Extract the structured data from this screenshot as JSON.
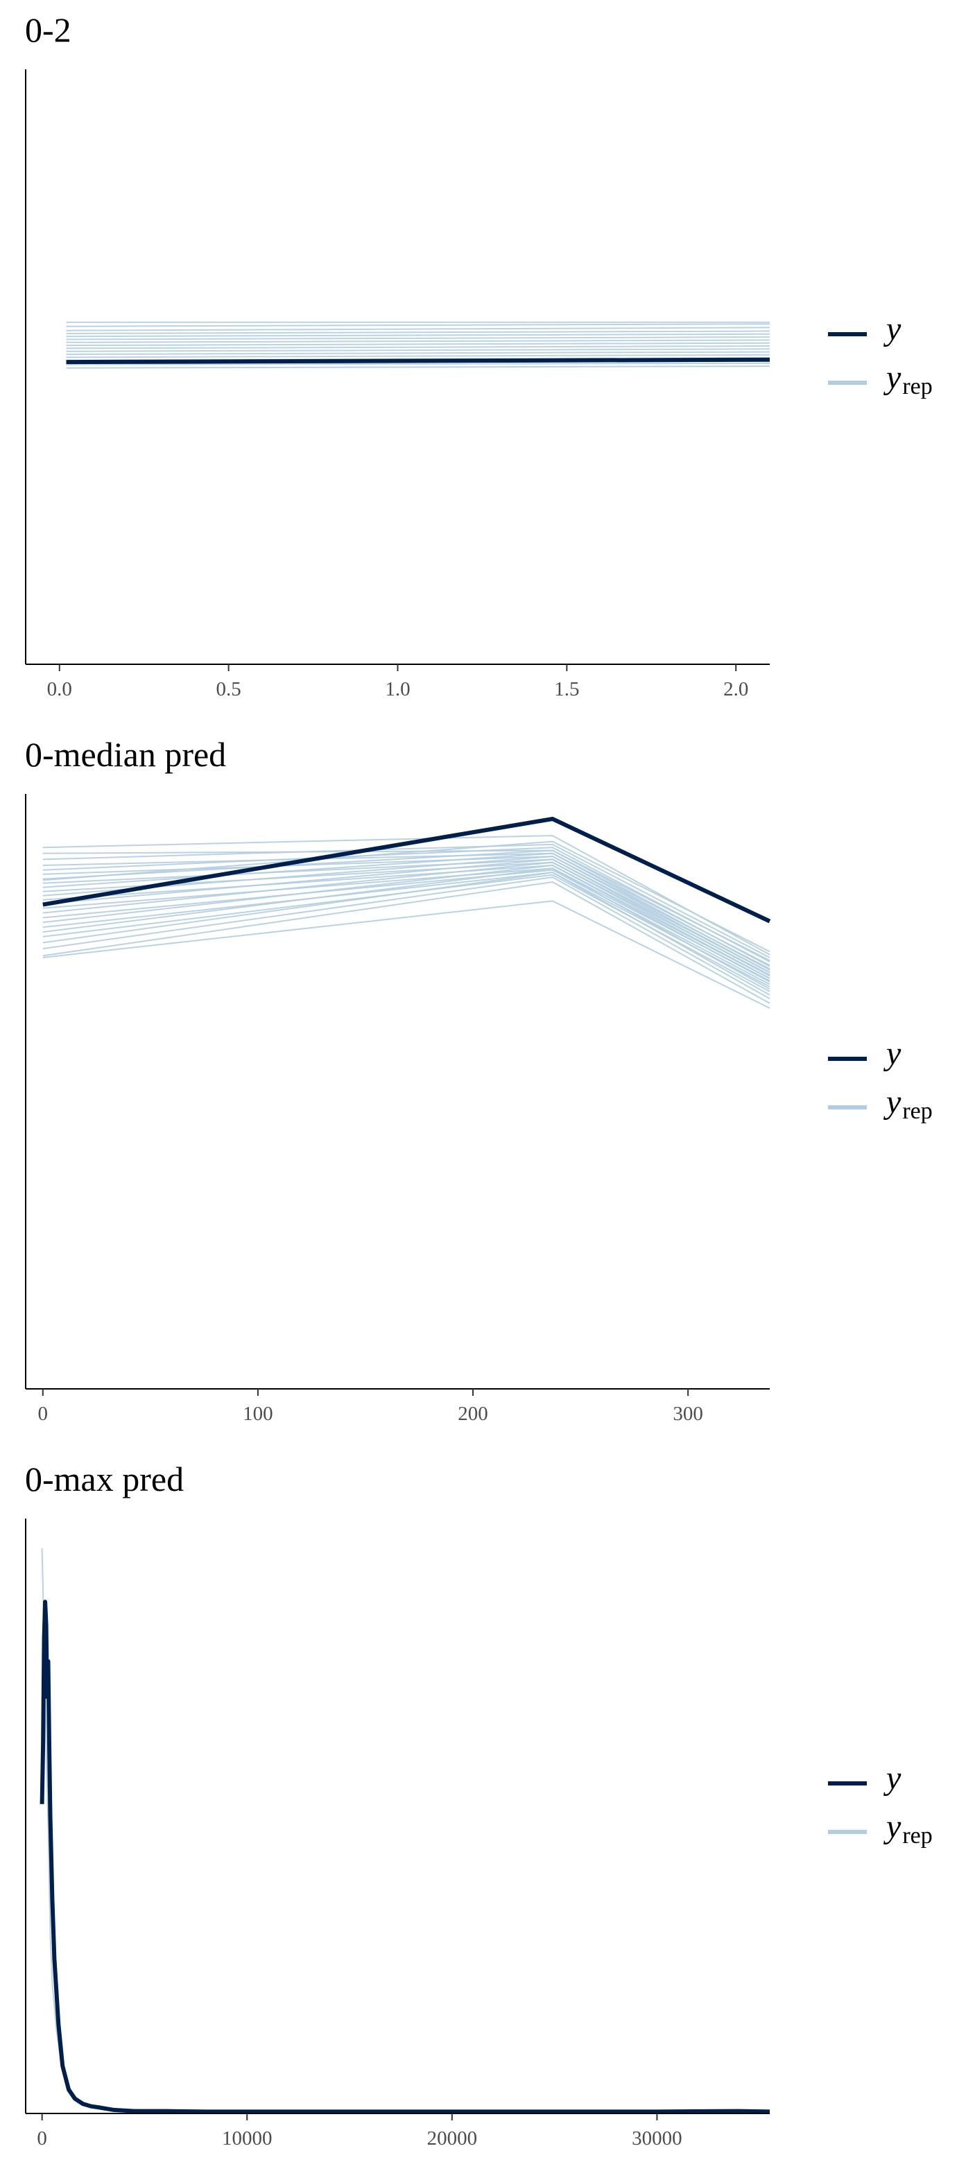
{
  "chart_data": [
    {
      "type": "line",
      "title": "0-2",
      "xlabel": "",
      "ylabel": "",
      "xlim": [
        -0.1,
        2.1
      ],
      "ylim": [
        0,
        1
      ],
      "x_ticks": [
        {
          "value": 0.0,
          "label": "0.0"
        },
        {
          "value": 0.5,
          "label": "0.5"
        },
        {
          "value": 1.0,
          "label": "1.0"
        },
        {
          "value": 1.5,
          "label": "1.5"
        },
        {
          "value": 2.0,
          "label": "2.0"
        }
      ],
      "legend": {
        "position": "right",
        "entries": [
          {
            "symbol": "y",
            "subscript": ""
          },
          {
            "symbol": "y",
            "subscript": "rep"
          }
        ]
      },
      "series": [
        {
          "x": [
            0.02,
            2.1
          ],
          "y": [
            0.508,
            0.512
          ],
          "role": "y",
          "color": "#011f4b"
        },
        {
          "x": [
            0.02,
            2.1
          ],
          "y": [
            0.575,
            0.575
          ],
          "role": "rep",
          "color": "#b3cde0"
        },
        {
          "x": [
            0.02,
            2.1
          ],
          "y": [
            0.568,
            0.572
          ],
          "role": "rep",
          "color": "#b3cde0"
        },
        {
          "x": [
            0.02,
            2.1
          ],
          "y": [
            0.561,
            0.566
          ],
          "role": "rep",
          "color": "#b3cde0"
        },
        {
          "x": [
            0.02,
            2.1
          ],
          "y": [
            0.556,
            0.56
          ],
          "role": "rep",
          "color": "#b3cde0"
        },
        {
          "x": [
            0.02,
            2.1
          ],
          "y": [
            0.551,
            0.555
          ],
          "role": "rep",
          "color": "#b3cde0"
        },
        {
          "x": [
            0.02,
            2.1
          ],
          "y": [
            0.546,
            0.55
          ],
          "role": "rep",
          "color": "#b3cde0"
        },
        {
          "x": [
            0.02,
            2.1
          ],
          "y": [
            0.541,
            0.545
          ],
          "role": "rep",
          "color": "#b3cde0"
        },
        {
          "x": [
            0.02,
            2.1
          ],
          "y": [
            0.536,
            0.54
          ],
          "role": "rep",
          "color": "#b3cde0"
        },
        {
          "x": [
            0.02,
            2.1
          ],
          "y": [
            0.531,
            0.535
          ],
          "role": "rep",
          "color": "#b3cde0"
        },
        {
          "x": [
            0.02,
            2.1
          ],
          "y": [
            0.526,
            0.53
          ],
          "role": "rep",
          "color": "#b3cde0"
        },
        {
          "x": [
            0.02,
            2.1
          ],
          "y": [
            0.521,
            0.525
          ],
          "role": "rep",
          "color": "#b3cde0"
        },
        {
          "x": [
            0.02,
            2.1
          ],
          "y": [
            0.516,
            0.52
          ],
          "role": "rep",
          "color": "#b3cde0"
        },
        {
          "x": [
            0.02,
            2.1
          ],
          "y": [
            0.511,
            0.515
          ],
          "role": "rep",
          "color": "#b3cde0"
        },
        {
          "x": [
            0.02,
            2.1
          ],
          "y": [
            0.504,
            0.506
          ],
          "role": "rep",
          "color": "#b3cde0"
        },
        {
          "x": [
            0.02,
            2.1
          ],
          "y": [
            0.498,
            0.501
          ],
          "role": "rep",
          "color": "#b3cde0"
        }
      ]
    },
    {
      "type": "line",
      "title": "0-median pred",
      "xlabel": "",
      "ylabel": "",
      "xlim": [
        -8,
        338
      ],
      "ylim": [
        0,
        1
      ],
      "x_ticks": [
        {
          "value": 0,
          "label": "0"
        },
        {
          "value": 100,
          "label": "100"
        },
        {
          "value": 200,
          "label": "200"
        },
        {
          "value": 300,
          "label": "300"
        }
      ],
      "legend": {
        "position": "right",
        "entries": [
          {
            "symbol": "y",
            "subscript": ""
          },
          {
            "symbol": "y",
            "subscript": "rep"
          }
        ]
      },
      "series": [
        {
          "x": [
            0,
            237,
            338
          ],
          "y": [
            0.814,
            0.958,
            0.786
          ],
          "role": "y",
          "color": "#011f4b"
        },
        {
          "x": [
            0,
            237,
            338
          ],
          "y": [
            0.91,
            0.93,
            0.73
          ],
          "role": "rep",
          "color": "#b3cde0"
        },
        {
          "x": [
            0,
            237,
            338
          ],
          "y": [
            0.9,
            0.905,
            0.72
          ],
          "role": "rep",
          "color": "#b3cde0"
        },
        {
          "x": [
            0,
            237,
            338
          ],
          "y": [
            0.89,
            0.915,
            0.725
          ],
          "role": "rep",
          "color": "#b3cde0"
        },
        {
          "x": [
            0,
            237,
            338
          ],
          "y": [
            0.88,
            0.9,
            0.712
          ],
          "role": "rep",
          "color": "#b3cde0"
        },
        {
          "x": [
            0,
            237,
            338
          ],
          "y": [
            0.872,
            0.91,
            0.718
          ],
          "role": "rep",
          "color": "#b3cde0"
        },
        {
          "x": [
            0,
            237,
            338
          ],
          "y": [
            0.865,
            0.895,
            0.706
          ],
          "role": "rep",
          "color": "#b3cde0"
        },
        {
          "x": [
            0,
            237,
            338
          ],
          "y": [
            0.857,
            0.905,
            0.71
          ],
          "role": "rep",
          "color": "#b3cde0"
        },
        {
          "x": [
            0,
            237,
            338
          ],
          "y": [
            0.85,
            0.89,
            0.7
          ],
          "role": "rep",
          "color": "#b3cde0"
        },
        {
          "x": [
            0,
            237,
            338
          ],
          "y": [
            0.843,
            0.9,
            0.704
          ],
          "role": "rep",
          "color": "#b3cde0"
        },
        {
          "x": [
            0,
            237,
            338
          ],
          "y": [
            0.836,
            0.885,
            0.696
          ],
          "role": "rep",
          "color": "#b3cde0"
        },
        {
          "x": [
            0,
            237,
            338
          ],
          "y": [
            0.829,
            0.895,
            0.7
          ],
          "role": "rep",
          "color": "#b3cde0"
        },
        {
          "x": [
            0,
            237,
            338
          ],
          "y": [
            0.822,
            0.88,
            0.69
          ],
          "role": "rep",
          "color": "#b3cde0"
        },
        {
          "x": [
            0,
            237,
            338
          ],
          "y": [
            0.815,
            0.89,
            0.694
          ],
          "role": "rep",
          "color": "#b3cde0"
        },
        {
          "x": [
            0,
            237,
            338
          ],
          "y": [
            0.808,
            0.875,
            0.686
          ],
          "role": "rep",
          "color": "#b3cde0"
        },
        {
          "x": [
            0,
            237,
            338
          ],
          "y": [
            0.8,
            0.885,
            0.69
          ],
          "role": "rep",
          "color": "#b3cde0"
        },
        {
          "x": [
            0,
            237,
            338
          ],
          "y": [
            0.792,
            0.872,
            0.68
          ],
          "role": "rep",
          "color": "#b3cde0"
        },
        {
          "x": [
            0,
            237,
            338
          ],
          "y": [
            0.784,
            0.88,
            0.684
          ],
          "role": "rep",
          "color": "#b3cde0"
        },
        {
          "x": [
            0,
            237,
            338
          ],
          "y": [
            0.776,
            0.868,
            0.676
          ],
          "role": "rep",
          "color": "#b3cde0"
        },
        {
          "x": [
            0,
            237,
            338
          ],
          "y": [
            0.768,
            0.875,
            0.672
          ],
          "role": "rep",
          "color": "#b3cde0"
        },
        {
          "x": [
            0,
            237,
            338
          ],
          "y": [
            0.76,
            0.864,
            0.668
          ],
          "role": "rep",
          "color": "#b3cde0"
        },
        {
          "x": [
            0,
            237,
            338
          ],
          "y": [
            0.75,
            0.868,
            0.662
          ],
          "role": "rep",
          "color": "#b3cde0"
        },
        {
          "x": [
            0,
            237,
            338
          ],
          "y": [
            0.74,
            0.86,
            0.656
          ],
          "role": "rep",
          "color": "#b3cde0"
        },
        {
          "x": [
            0,
            237,
            338
          ],
          "y": [
            0.728,
            0.852,
            0.648
          ],
          "role": "rep",
          "color": "#b3cde0"
        },
        {
          "x": [
            0,
            237,
            338
          ],
          "y": [
            0.855,
            0.92,
            0.735
          ],
          "role": "rep",
          "color": "#b3cde0"
        },
        {
          "x": [
            0,
            237,
            338
          ],
          "y": [
            0.725,
            0.82,
            0.64
          ],
          "role": "rep",
          "color": "#b3cde0"
        }
      ]
    },
    {
      "type": "line",
      "title": "0-max pred",
      "xlabel": "",
      "ylabel": "",
      "xlim": [
        -800,
        35500
      ],
      "ylim": [
        0,
        1
      ],
      "x_ticks": [
        {
          "value": 0,
          "label": "0"
        },
        {
          "value": 10000,
          "label": "10000"
        },
        {
          "value": 20000,
          "label": "20000"
        },
        {
          "value": 30000,
          "label": "30000"
        }
      ],
      "legend": {
        "position": "right",
        "entries": [
          {
            "symbol": "y",
            "subscript": ""
          },
          {
            "symbol": "y",
            "subscript": "rep"
          }
        ]
      },
      "series": [
        {
          "x": [
            0,
            100,
            200,
            300,
            400,
            500,
            700,
            900,
            1200,
            1600,
            2000,
            2500,
            3000,
            4000,
            6000,
            10000,
            20000,
            30000,
            35500
          ],
          "y": [
            0.95,
            0.8,
            0.62,
            0.48,
            0.3,
            0.22,
            0.14,
            0.09,
            0.05,
            0.03,
            0.016,
            0.01,
            0.006,
            0.004,
            0.003,
            0.003,
            0.003,
            0.003,
            0.003
          ],
          "role": "rep",
          "color": "#b3cde0"
        },
        {
          "x": [
            0,
            50,
            100,
            150,
            200,
            250,
            300,
            350,
            400,
            500,
            600,
            800,
            1000,
            1300,
            1600,
            2000,
            2400,
            2800,
            3500,
            4500,
            6000,
            8000,
            10000,
            15000,
            20000,
            25000,
            30000,
            34000,
            35500
          ],
          "y": [
            0.52,
            0.62,
            0.8,
            0.86,
            0.82,
            0.7,
            0.76,
            0.62,
            0.5,
            0.36,
            0.26,
            0.15,
            0.08,
            0.04,
            0.025,
            0.016,
            0.012,
            0.01,
            0.006,
            0.004,
            0.004,
            0.003,
            0.003,
            0.003,
            0.003,
            0.003,
            0.003,
            0.004,
            0.003
          ],
          "role": "y",
          "color": "#011f4b"
        }
      ]
    }
  ]
}
